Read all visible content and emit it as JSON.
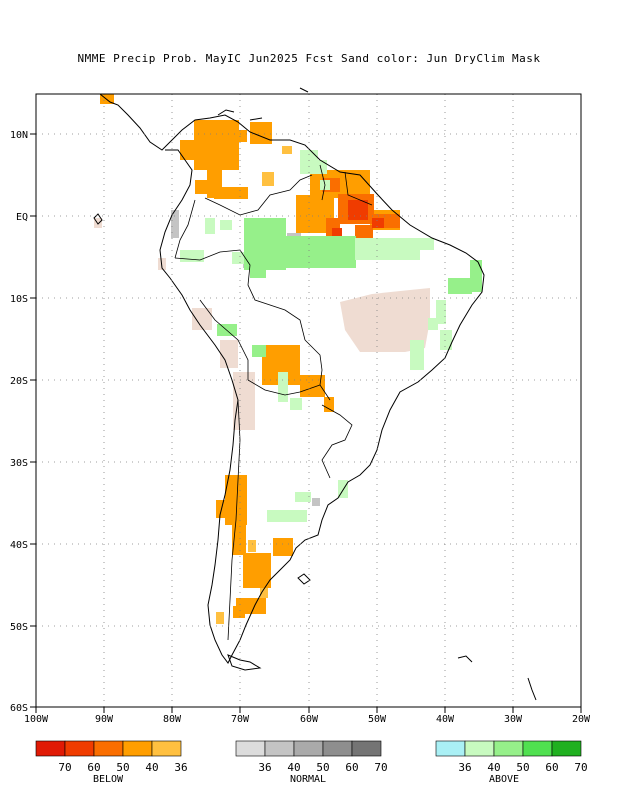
{
  "title": "NMME Precip Prob. MayIC  Jun2025 Fcst  Sand color: Jun DryClim Mask",
  "lat_labels": [
    "10N",
    "EQ",
    "10S",
    "20S",
    "30S",
    "40S",
    "50S",
    "60S"
  ],
  "lon_labels": [
    "100W",
    "90W",
    "80W",
    "70W",
    "60W",
    "50W",
    "40W",
    "30W",
    "20W"
  ],
  "legend": {
    "below": {
      "label": "BELOW",
      "colors": [
        "#e01a05",
        "#f03c00",
        "#fa6e00",
        "#ff9e00",
        "#ffc040"
      ],
      "ticks": [
        "70",
        "60",
        "50",
        "40",
        "36"
      ]
    },
    "normal": {
      "label": "NORMAL",
      "colors": [
        "#dcdcdc",
        "#c4c4c4",
        "#aaaaaa",
        "#8e8e8e",
        "#747474"
      ],
      "ticks": [
        "36",
        "40",
        "50",
        "60",
        "70"
      ]
    },
    "above": {
      "label": "ABOVE",
      "colors": [
        "#aaf0f5",
        "#c8fac0",
        "#96f08a",
        "#50e050",
        "#20b020"
      ],
      "ticks": [
        "36",
        "40",
        "50",
        "60",
        "70"
      ]
    }
  },
  "colors": {
    "below_40": "#ff9e00",
    "below_50": "#fa6e00",
    "below_60": "#f03c00",
    "below_36": "#ffc040",
    "normal_40": "#c4c4c4",
    "above_40": "#c8fac0",
    "above_50": "#96f08a",
    "dry_mask": "#efdcd2"
  }
}
